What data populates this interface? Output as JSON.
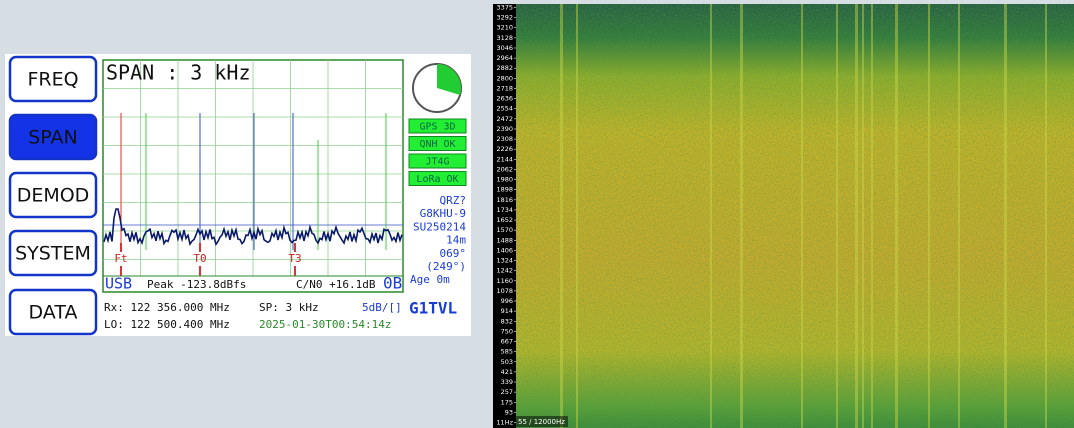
{
  "buttons": [
    "FREQ",
    "SPAN",
    "DEMOD",
    "SYSTEM",
    "DATA"
  ],
  "display": {
    "title": "SPAN : 3 kHz",
    "markers": [
      "Ft",
      "T0",
      "T3"
    ],
    "mode": "USB",
    "peak": "Peak -123.8dBfs",
    "cn0": "C/N0 +16.1dB",
    "badge": "0B"
  },
  "status": {
    "boxes": [
      "GPS 3D",
      "QNH OK",
      "JT4G",
      "LoRa OK"
    ],
    "info": [
      "QRZ?",
      "G8KHU-9",
      "SU250214",
      "14m",
      "069°",
      "(249°)",
      "Age  0m"
    ]
  },
  "footer": {
    "rx": "Rx: 122 356.000 MHz",
    "sp": "SP:  3 kHz",
    "scale": "5dB/[]",
    "callsign": "G1TVL",
    "lo": "LO: 122 500.400 MHz",
    "time": "2025-01-30T00:54:14z"
  },
  "waterfall": {
    "labels": [
      "3375",
      "3292",
      "3210",
      "3128",
      "3046",
      "2964",
      "2882",
      "2800",
      "2718",
      "2636",
      "2554",
      "2472",
      "2390",
      "2308",
      "2226",
      "2144",
      "2062",
      "1980",
      "1898",
      "1816",
      "1734",
      "1652",
      "1570",
      "1488",
      "1406",
      "1324",
      "1242",
      "1160",
      "1078",
      "996",
      "914",
      "832",
      "750",
      "667",
      "585",
      "503",
      "421",
      "339",
      "257",
      "175",
      "93",
      "11Hz"
    ],
    "caption": "55 / 12000Hz"
  }
}
